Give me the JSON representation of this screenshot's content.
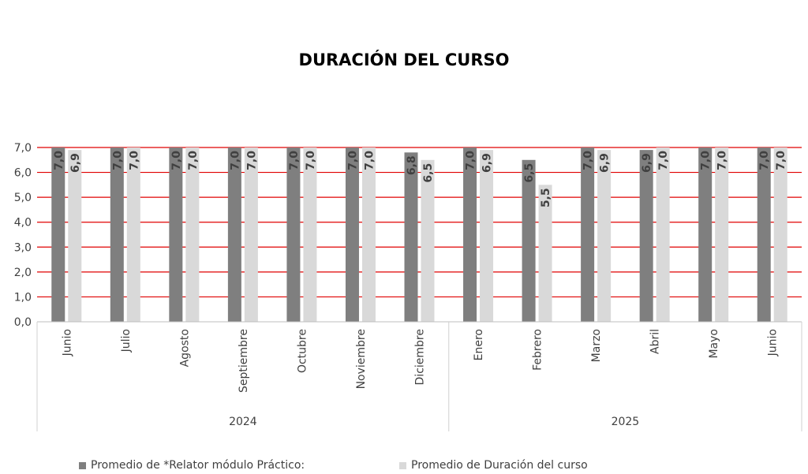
{
  "chart_data": {
    "type": "bar",
    "title": "DURACIÓN DEL CURSO",
    "groups": [
      {
        "label": "2024",
        "categories": [
          "Junio",
          "Julio",
          "Agosto",
          "Septiembre",
          "Octubre",
          "Noviembre",
          "Diciembre"
        ]
      },
      {
        "label": "2025",
        "categories": [
          "Enero",
          "Febrero",
          "Marzo",
          "Abril",
          "Mayo",
          "Junio"
        ]
      }
    ],
    "series": [
      {
        "name": "Promedio de *Relator módulo Práctico:",
        "color": "#7f7f7f",
        "values": [
          7.0,
          7.0,
          7.0,
          7.0,
          7.0,
          7.0,
          6.8,
          7.0,
          6.5,
          7.0,
          6.9,
          7.0,
          7.0
        ],
        "labels": [
          "7,0",
          "7,0",
          "7,0",
          "7,0",
          "7,0",
          "7,0",
          "6,8",
          "7,0",
          "6,5",
          "7,0",
          "6,9",
          "7,0",
          "7,0"
        ]
      },
      {
        "name": "Promedio de Duración del curso",
        "color": "#d9d9d9",
        "values": [
          6.9,
          7.0,
          7.0,
          7.0,
          7.0,
          7.0,
          6.5,
          6.9,
          5.5,
          6.9,
          7.0,
          7.0,
          7.0
        ],
        "labels": [
          "6,9",
          "7,0",
          "7,0",
          "7,0",
          "7,0",
          "7,0",
          "6,5",
          "6,9",
          "5,5",
          "6,9",
          "7,0",
          "7,0",
          "7,0"
        ]
      }
    ],
    "ylim": [
      0,
      7
    ],
    "yticks": [
      "0,0",
      "1,0",
      "2,0",
      "3,0",
      "4,0",
      "5,0",
      "6,0",
      "7,0"
    ],
    "gridline_color": "#e00000",
    "legend_position": "bottom"
  }
}
